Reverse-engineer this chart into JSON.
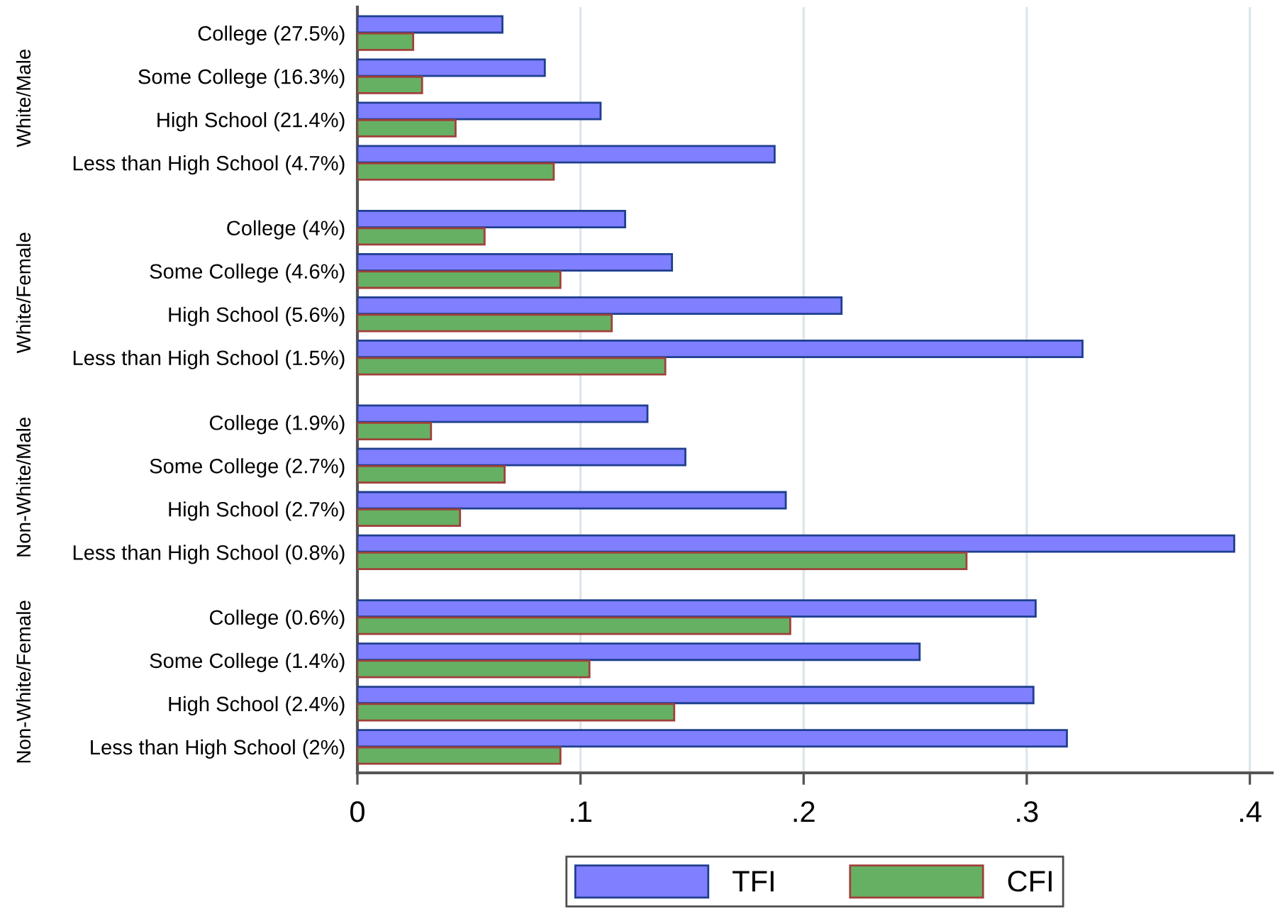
{
  "chart_data": {
    "type": "bar",
    "orientation": "horizontal",
    "categories": [
      "College (27.5%)",
      "Some College (16.3%)",
      "High School (21.4%)",
      "Less than High School (4.7%)",
      "College (4%)",
      "Some College (4.6%)",
      "High School (5.6%)",
      "Less than High School (1.5%)",
      "College (1.9%)",
      "Some College (2.7%)",
      "High School (2.7%)",
      "Less than High School (0.8%)",
      "College (0.6%)",
      "Some College (1.4%)",
      "High School (2.4%)",
      "Less than High School (2%)"
    ],
    "series": [
      {
        "name": "TFI",
        "color": "#7f7fff",
        "values": [
          0.065,
          0.084,
          0.109,
          0.187,
          0.12,
          0.141,
          0.217,
          0.325,
          0.13,
          0.147,
          0.192,
          0.393,
          0.304,
          0.252,
          0.303,
          0.318
        ]
      },
      {
        "name": "CFI",
        "color": "#66b064",
        "values": [
          0.025,
          0.029,
          0.044,
          0.088,
          0.057,
          0.091,
          0.114,
          0.138,
          0.033,
          0.066,
          0.046,
          0.273,
          0.194,
          0.104,
          0.142,
          0.091
        ]
      }
    ],
    "annotations": [
      "White/Male",
      "White/Female",
      "Non-White/Male",
      "Non-White/Female"
    ],
    "xlim": [
      0,
      0.41
    ],
    "xticks": [
      0,
      {
        "value": 0.1,
        "label": ".1"
      },
      {
        "value": 0.2,
        "label": ".2"
      },
      {
        "value": 0.3,
        "label": ".3"
      },
      {
        "value": 0.4,
        "label": ".4"
      }
    ],
    "grid": "x",
    "legend": "bottom"
  }
}
